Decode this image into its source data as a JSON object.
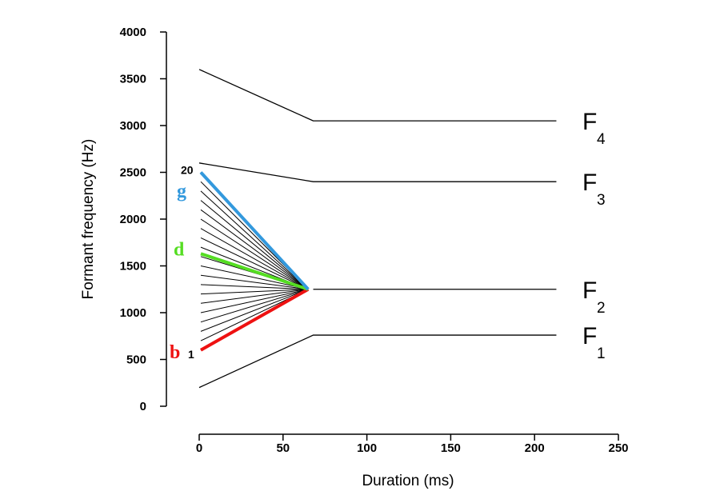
{
  "chart_data": {
    "type": "line",
    "xlabel": "Duration (ms)",
    "ylabel": "Formant frequency (Hz)",
    "xlim": [
      0,
      250
    ],
    "ylim": [
      0,
      4000
    ],
    "xticks": [
      "0",
      "50",
      "100",
      "150",
      "200",
      "250"
    ],
    "yticks": [
      "0",
      "500",
      "1000",
      "1500",
      "2000",
      "2500",
      "3000",
      "3500",
      "4000"
    ],
    "grid": false,
    "formants": [
      {
        "name": "F1",
        "letter": "F",
        "sub": "1",
        "x": [
          0,
          68,
          213
        ],
        "y": [
          200,
          760,
          760
        ]
      },
      {
        "name": "F2",
        "letter": "F",
        "sub": "2",
        "x": [
          68,
          213
        ],
        "y": [
          1250,
          1250
        ]
      },
      {
        "name": "F3",
        "letter": "F",
        "sub": "3",
        "x": [
          0,
          68,
          213
        ],
        "y": [
          2600,
          2400,
          2400
        ]
      },
      {
        "name": "F4",
        "letter": "F",
        "sub": "4",
        "x": [
          0,
          68,
          213
        ],
        "y": [
          3600,
          3050,
          3050
        ]
      }
    ],
    "f2_continuum": {
      "start_x": 0,
      "end_x": 65,
      "end_y": 1250,
      "steps": 20,
      "start_y_first": 600,
      "start_y_last": 2500,
      "first_label": "1",
      "last_label": "20"
    },
    "highlights": [
      {
        "label": "b",
        "color": "#ee1111",
        "start_y": 600
      },
      {
        "label": "d",
        "color": "#55dd22",
        "start_y": 1630
      },
      {
        "label": "g",
        "color": "#3399dd",
        "start_y": 2500
      }
    ]
  }
}
